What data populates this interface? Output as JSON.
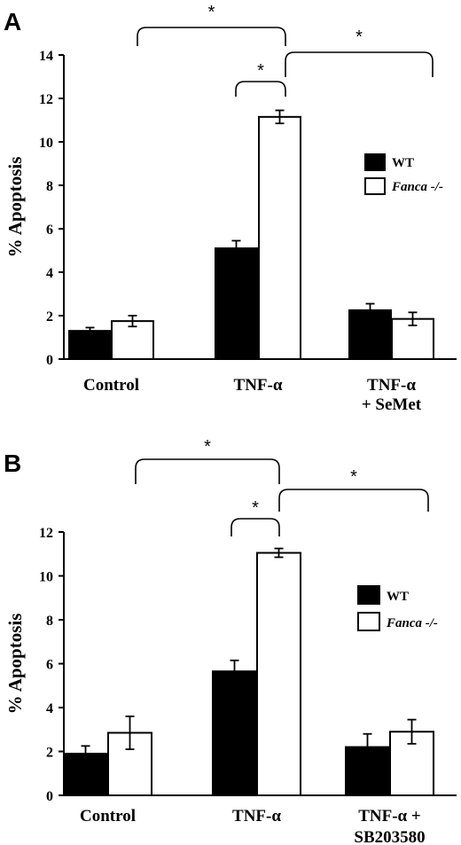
{
  "chart_data": [
    {
      "type": "bar",
      "panel": "A",
      "ylabel": "% Apoptosis",
      "ylim": [
        0,
        14
      ],
      "yticks": [
        0,
        2,
        4,
        6,
        8,
        10,
        12,
        14
      ],
      "categories": [
        [
          "Control"
        ],
        [
          "TNF-α"
        ],
        [
          "TNF-α",
          "+ SeMet"
        ]
      ],
      "series": [
        {
          "name": "WT",
          "color": "#000000",
          "values": [
            1.3,
            5.1,
            2.25
          ],
          "errors": [
            0.15,
            0.35,
            0.3
          ]
        },
        {
          "name": "Fanca -/-",
          "color": "#ffffff",
          "values": [
            1.75,
            11.15,
            1.85
          ],
          "errors": [
            0.25,
            0.3,
            0.3
          ]
        }
      ],
      "significance": [
        "*",
        "*",
        "*"
      ],
      "legend_position": "right"
    },
    {
      "type": "bar",
      "panel": "B",
      "ylabel": "% Apoptosis",
      "ylim": [
        0,
        12
      ],
      "yticks": [
        0,
        2,
        4,
        6,
        8,
        10,
        12
      ],
      "categories": [
        [
          "Control"
        ],
        [
          "TNF-α"
        ],
        [
          "TNF-α +",
          "SB203580"
        ]
      ],
      "series": [
        {
          "name": "WT",
          "color": "#000000",
          "values": [
            1.9,
            5.65,
            2.2
          ],
          "errors": [
            0.35,
            0.5,
            0.6
          ]
        },
        {
          "name": "Fanca -/-",
          "color": "#ffffff",
          "values": [
            2.85,
            11.05,
            2.9
          ],
          "errors": [
            0.75,
            0.2,
            0.55
          ]
        }
      ],
      "significance": [
        "*",
        "*",
        "*"
      ],
      "legend_position": "right"
    }
  ]
}
